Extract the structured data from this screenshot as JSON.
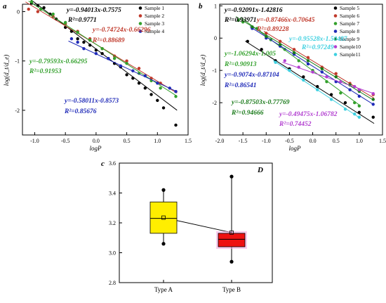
{
  "panels": [
    {
      "label": "a",
      "colors": [
        "#000000",
        "#c0392b",
        "#33a02c",
        "#1f2ab8"
      ],
      "chart_data": {
        "type": "scatter",
        "xlabel": "logP",
        "ylabel": "log(d_t/d_e)",
        "xlim": [
          -1.2,
          1.5
        ],
        "ylim": [
          -2.5,
          0.15
        ],
        "xticks": [
          "-1.0",
          "-0.5",
          "0.0",
          "0.5",
          "1.0",
          "1.5"
        ],
        "yticks": [
          "0",
          "-1",
          "-2"
        ],
        "legend_position": "top-right",
        "series": [
          {
            "name": "Sample 1",
            "fit": [
              -0.94013,
              -0.7575
            ],
            "equation": "y=-0.94013x-0.7575",
            "r2": "R²=0.9771",
            "points": [
              [
                -1.05,
                0.17
              ],
              [
                -0.95,
                0.12
              ],
              [
                -0.85,
                0.08
              ],
              [
                -0.75,
                -0.05
              ],
              [
                -0.65,
                -0.15
              ],
              [
                -0.5,
                -0.32
              ],
              [
                -0.4,
                -0.4
              ],
              [
                -0.3,
                -0.55
              ],
              [
                -0.2,
                -0.62
              ],
              [
                -0.1,
                -0.68
              ],
              [
                0.0,
                -0.78
              ],
              [
                0.1,
                -0.85
              ],
              [
                0.2,
                -0.95
              ],
              [
                0.3,
                -1.05
              ],
              [
                0.4,
                -1.12
              ],
              [
                0.5,
                -1.28
              ],
              [
                0.6,
                -1.35
              ],
              [
                0.7,
                -1.45
              ],
              [
                0.8,
                -1.55
              ],
              [
                0.9,
                -1.68
              ],
              [
                1.0,
                -1.8
              ],
              [
                1.1,
                -1.95
              ],
              [
                1.3,
                -2.3
              ]
            ]
          },
          {
            "name": "Sample 2",
            "fit": [
              -0.74724,
              -0.66296
            ],
            "equation": "y=-0.74724x-0.66296",
            "r2": "R²=0.88689",
            "points": [
              [
                -1.1,
                0.05
              ],
              [
                -0.95,
                0.0
              ],
              [
                -0.7,
                -0.1
              ],
              [
                -0.5,
                -0.25
              ],
              [
                -0.3,
                -0.4
              ],
              [
                -0.1,
                -0.55
              ],
              [
                0.1,
                -0.75
              ],
              [
                0.3,
                -0.9
              ],
              [
                0.5,
                -1.0
              ],
              [
                0.7,
                -1.15
              ],
              [
                0.9,
                -1.35
              ],
              [
                1.05,
                -1.45
              ],
              [
                1.3,
                -1.62
              ]
            ]
          },
          {
            "name": "Sample 3",
            "fit": [
              -0.79593,
              -0.66295
            ],
            "equation": "y=-0.79593x-0.66295",
            "r2": "R²=0.91953",
            "points": [
              [
                -1.05,
                0.2
              ],
              [
                -0.9,
                0.05
              ],
              [
                -0.7,
                -0.05
              ],
              [
                -0.5,
                -0.22
              ],
              [
                -0.3,
                -0.42
              ],
              [
                -0.1,
                -0.58
              ],
              [
                0.1,
                -0.75
              ],
              [
                0.3,
                -0.95
              ],
              [
                0.5,
                -1.05
              ],
              [
                0.7,
                -1.25
              ],
              [
                0.9,
                -1.4
              ],
              [
                1.05,
                -1.55
              ],
              [
                1.3,
                -1.72
              ]
            ]
          },
          {
            "name": "Sample 4",
            "fit": [
              -0.58011,
              -0.8573
            ],
            "equation": "y=-0.58011x-0.8573",
            "r2": "R²=0.85676",
            "points": [
              [
                -0.4,
                -0.55
              ],
              [
                -0.3,
                -0.62
              ],
              [
                -0.2,
                -0.75
              ],
              [
                0.0,
                -0.85
              ],
              [
                0.2,
                -0.95
              ],
              [
                0.4,
                -1.1
              ],
              [
                0.6,
                -1.2
              ],
              [
                0.8,
                -1.3
              ],
              [
                1.0,
                -1.45
              ],
              [
                1.2,
                -1.55
              ],
              [
                1.3,
                -1.62
              ]
            ]
          }
        ]
      }
    },
    {
      "label": "b",
      "colors": [
        "#000000",
        "#c0392b",
        "#33a02c",
        "#1f2ab8",
        "#1a7a1a",
        "#b23fd0",
        "#3ed0e0"
      ],
      "chart_data": {
        "type": "scatter",
        "xlabel": "logP",
        "ylabel": "log(d_t/d_e)",
        "xlim": [
          -2.0,
          1.5
        ],
        "ylim": [
          -3.0,
          1.05
        ],
        "xticks": [
          "-2.0",
          "-1.5",
          "-1.0",
          "-0.5",
          "0.0",
          "0.5",
          "1.0",
          "1.5"
        ],
        "yticks": [
          "1",
          "0",
          "-1",
          "-2"
        ],
        "legend_position": "top-right",
        "series": [
          {
            "name": "Sample 5",
            "fit": [
              -0.92091,
              -1.42816
            ],
            "equation": "y=-0.92091x-1.42816",
            "r2": "R²=0.93971",
            "points": [
              [
                -1.4,
                -0.1
              ],
              [
                -1.1,
                -0.35
              ],
              [
                -0.8,
                -0.7
              ],
              [
                -0.5,
                -0.95
              ],
              [
                -0.2,
                -1.2
              ],
              [
                0.1,
                -1.5
              ],
              [
                0.4,
                -1.75
              ],
              [
                0.7,
                -2.0
              ],
              [
                1.0,
                -2.3
              ],
              [
                1.3,
                -2.45
              ]
            ]
          },
          {
            "name": "Sample 6",
            "fit": [
              -0.87466,
              -0.70645
            ],
            "equation": "y=-0.87466x-0.70645",
            "r2": "R²=0.89228",
            "points": [
              [
                -1.0,
                0.15
              ],
              [
                -0.7,
                -0.1
              ],
              [
                -0.4,
                -0.35
              ],
              [
                -0.1,
                -0.6
              ],
              [
                0.2,
                -0.9
              ],
              [
                0.5,
                -1.1
              ],
              [
                0.8,
                -1.4
              ],
              [
                1.0,
                -1.6
              ],
              [
                1.3,
                -1.75
              ]
            ]
          },
          {
            "name": "Sample 7",
            "fit": [
              -1.06294,
              -1.005
            ],
            "equation": "y=-1.06294x-1.005",
            "r2": "R²=0.90913",
            "points": [
              [
                -1.5,
                0.5
              ],
              [
                -1.2,
                0.3
              ],
              [
                -0.9,
                -0.05
              ],
              [
                -0.6,
                -0.35
              ],
              [
                -0.3,
                -0.7
              ],
              [
                0.0,
                -1.0
              ],
              [
                0.3,
                -1.35
              ],
              [
                0.6,
                -1.7
              ],
              [
                0.9,
                -2.0
              ],
              [
                1.0,
                -2.1
              ]
            ]
          },
          {
            "name": "Sample 8",
            "fit": [
              -0.9074,
              -0.87104
            ],
            "equation": "y=-0.9074x-0.87104",
            "r2": "R²=0.86541",
            "points": [
              [
                -1.3,
                0.3
              ],
              [
                -1.0,
                0.0
              ],
              [
                -0.7,
                -0.25
              ],
              [
                -0.4,
                -0.5
              ],
              [
                -0.1,
                -0.8
              ],
              [
                0.2,
                -1.05
              ],
              [
                0.5,
                -1.35
              ],
              [
                0.8,
                -1.6
              ],
              [
                1.0,
                -1.8
              ],
              [
                1.3,
                -2.05
              ]
            ]
          },
          {
            "name": "Sample 9",
            "fit": [
              -0.87503,
              -0.77769
            ],
            "equation": "y=-0.87503x-0.77769",
            "r2": "R²=0.94666",
            "points": [
              [
                -1.6,
                0.55
              ],
              [
                -1.3,
                0.35
              ],
              [
                -1.0,
                0.05
              ],
              [
                -0.7,
                -0.2
              ],
              [
                -0.4,
                -0.45
              ],
              [
                -0.1,
                -0.7
              ],
              [
                0.2,
                -0.95
              ],
              [
                0.5,
                -1.2
              ],
              [
                0.8,
                -1.45
              ],
              [
                1.0,
                -1.65
              ],
              [
                1.3,
                -1.9
              ]
            ]
          },
          {
            "name": "Sample10",
            "fit": [
              -0.49475,
              -1.06782
            ],
            "equation": "y=-0.49475x-1.06782",
            "r2": "R²=0.74452",
            "points": [
              [
                -0.6,
                -0.7
              ],
              [
                -0.3,
                -0.9
              ],
              [
                0.0,
                -1.05
              ],
              [
                0.3,
                -1.2
              ],
              [
                0.6,
                -1.35
              ],
              [
                0.9,
                -1.5
              ],
              [
                1.0,
                -1.6
              ],
              [
                1.3,
                -1.72
              ]
            ]
          },
          {
            "name": "Sample11",
            "fit": [
              -0.95528,
              -1.50487
            ],
            "equation": "y=-0.95528x-1.50487",
            "r2": "R²=0.97249",
            "points": [
              [
                -0.8,
                -0.75
              ],
              [
                -0.5,
                -1.0
              ],
              [
                -0.2,
                -1.3
              ],
              [
                0.1,
                -1.6
              ],
              [
                0.4,
                -1.9
              ],
              [
                0.7,
                -2.2
              ],
              [
                0.9,
                -2.35
              ],
              [
                1.0,
                -2.45
              ]
            ]
          }
        ]
      }
    }
  ],
  "panel_c": {
    "label": "c",
    "corner_label": "D",
    "chart_data": {
      "type": "box",
      "categories": [
        "Type A",
        "Type B"
      ],
      "ylim": [
        2.8,
        3.6
      ],
      "yticks": [
        "3.6",
        "3.4",
        "3.2",
        "3.0",
        "2.8"
      ],
      "colors": [
        "#ffee00",
        "#ee1111"
      ],
      "boxes": [
        {
          "min": 3.06,
          "q1": 3.13,
          "median": 3.23,
          "mean": 3.235,
          "q3": 3.34,
          "max": 3.42
        },
        {
          "min": 2.94,
          "q1": 3.04,
          "median": 3.09,
          "mean": 3.135,
          "q3": 3.13,
          "max": 3.51
        }
      ]
    }
  }
}
